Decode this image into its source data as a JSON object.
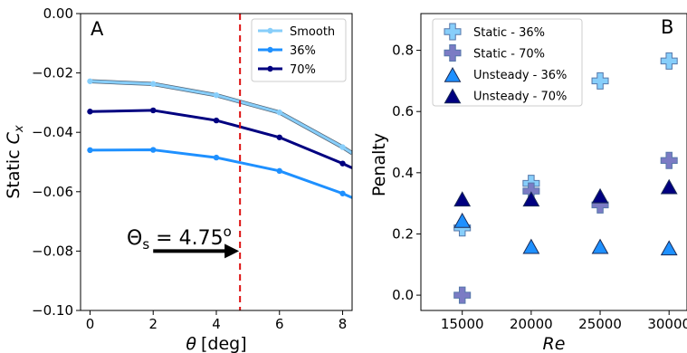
{
  "chart_data": [
    {
      "type": "line",
      "panel_label": "A",
      "xlabel_symbol": "θ",
      "xlabel_unit": "[deg]",
      "ylabel_prefix": "Static ",
      "ylabel_symbol": "C",
      "ylabel_sub": "x",
      "xlim": [
        -0.3,
        8.3
      ],
      "ylim": [
        -0.1,
        0.0
      ],
      "xticks": [
        0,
        2,
        4,
        6,
        8
      ],
      "xtick_labels": [
        "0",
        "2",
        "4",
        "6",
        "8"
      ],
      "yticks": [
        0.0,
        -0.02,
        -0.04,
        -0.06,
        -0.08,
        -0.1
      ],
      "ytick_labels": [
        "0.00",
        "−0.02",
        "−0.04",
        "−0.06",
        "−0.08",
        "−0.10"
      ],
      "legend_position": "top-right",
      "series": [
        {
          "name": "Smooth",
          "color": "#87cefa",
          "x": [
            0,
            2,
            4,
            6,
            8,
            8.3
          ],
          "y": [
            -0.0228,
            -0.0237,
            -0.0275,
            -0.0333,
            -0.045,
            -0.047
          ]
        },
        {
          "name": "36%",
          "color": "#1e90ff",
          "x": [
            0,
            2,
            4,
            6,
            8,
            8.3
          ],
          "y": [
            -0.046,
            -0.0459,
            -0.0485,
            -0.053,
            -0.0606,
            -0.062
          ]
        },
        {
          "name": "70%",
          "color": "#000080",
          "x": [
            0,
            2,
            4,
            6,
            8,
            8.3
          ],
          "y": [
            -0.033,
            -0.0326,
            -0.036,
            -0.0417,
            -0.0505,
            -0.052
          ]
        }
      ],
      "vline": {
        "x": 4.75,
        "color": "#dd1111"
      },
      "annotation": {
        "symbol": "Θ",
        "sub": "s",
        "text": " = 4.75",
        "sup": "o",
        "arrow_from": [
          2.0,
          -0.08
        ],
        "arrow_to": [
          4.72,
          -0.08
        ]
      }
    },
    {
      "type": "scatter",
      "panel_label": "B",
      "xlabel": "Re",
      "ylabel": "Penalty",
      "xlim": [
        12000,
        31300
      ],
      "ylim": [
        -0.05,
        0.92
      ],
      "xticks": [
        15000,
        20000,
        25000,
        30000
      ],
      "xtick_labels": [
        "15000",
        "20000",
        "25000",
        "30000"
      ],
      "yticks": [
        0.0,
        0.2,
        0.4,
        0.6,
        0.8
      ],
      "ytick_labels": [
        "0.0",
        "0.2",
        "0.4",
        "0.6",
        "0.8"
      ],
      "legend_position": "top-left",
      "series": [
        {
          "name": "Static - 36%",
          "marker": "plus",
          "color": "#87cefa",
          "x": [
            15000,
            20000,
            25000,
            30000
          ],
          "y": [
            0.22,
            0.365,
            0.7,
            0.765
          ]
        },
        {
          "name": "Static - 70%",
          "marker": "plus",
          "color": "#7b7bc4",
          "x": [
            15000,
            20000,
            25000,
            30000
          ],
          "y": [
            0.0,
            0.34,
            0.295,
            0.44
          ]
        },
        {
          "name": "Unsteady - 36%",
          "marker": "triangle",
          "color": "#1e90ff",
          "x": [
            15000,
            20000,
            25000,
            30000
          ],
          "y": [
            0.24,
            0.155,
            0.155,
            0.15
          ]
        },
        {
          "name": "Unsteady - 70%",
          "marker": "triangle",
          "color": "#000080",
          "x": [
            15000,
            20000,
            25000,
            30000
          ],
          "y": [
            0.31,
            0.31,
            0.32,
            0.35
          ]
        }
      ]
    }
  ]
}
